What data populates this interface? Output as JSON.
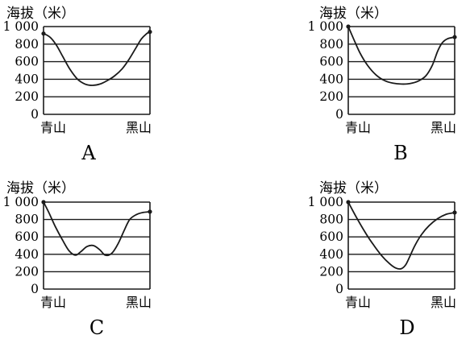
{
  "chart_data": [
    {
      "type": "line",
      "label": "A",
      "ylabel": "海拔（米）",
      "ylim": [
        0,
        1000
      ],
      "yticks": [
        "0",
        "200",
        "400",
        "600",
        "800",
        "1 000"
      ],
      "x_endpoints": [
        "青山",
        "黑山"
      ],
      "profile": [
        [
          0,
          920
        ],
        [
          0.06,
          880
        ],
        [
          0.12,
          790
        ],
        [
          0.18,
          660
        ],
        [
          0.25,
          510
        ],
        [
          0.32,
          400
        ],
        [
          0.39,
          345
        ],
        [
          0.46,
          330
        ],
        [
          0.53,
          345
        ],
        [
          0.6,
          385
        ],
        [
          0.67,
          440
        ],
        [
          0.74,
          520
        ],
        [
          0.8,
          620
        ],
        [
          0.86,
          740
        ],
        [
          0.92,
          860
        ],
        [
          0.97,
          920
        ],
        [
          1.0,
          940
        ]
      ]
    },
    {
      "type": "line",
      "label": "B",
      "ylabel": "海拔（米）",
      "ylim": [
        0,
        1000
      ],
      "yticks": [
        "0",
        "200",
        "400",
        "600",
        "800",
        "1 000"
      ],
      "x_endpoints": [
        "青山",
        "黑山"
      ],
      "profile": [
        [
          0,
          1000
        ],
        [
          0.05,
          860
        ],
        [
          0.11,
          700
        ],
        [
          0.18,
          560
        ],
        [
          0.26,
          450
        ],
        [
          0.34,
          385
        ],
        [
          0.42,
          355
        ],
        [
          0.5,
          345
        ],
        [
          0.58,
          350
        ],
        [
          0.66,
          380
        ],
        [
          0.73,
          440
        ],
        [
          0.79,
          560
        ],
        [
          0.84,
          720
        ],
        [
          0.88,
          810
        ],
        [
          0.93,
          860
        ],
        [
          1.0,
          880
        ]
      ]
    },
    {
      "type": "line",
      "label": "C",
      "ylabel": "海拔（米）",
      "ylim": [
        0,
        1000
      ],
      "yticks": [
        "0",
        "200",
        "400",
        "600",
        "800",
        "1 000"
      ],
      "x_endpoints": [
        "青山",
        "黑山"
      ],
      "profile": [
        [
          0,
          1000
        ],
        [
          0.05,
          880
        ],
        [
          0.11,
          720
        ],
        [
          0.18,
          560
        ],
        [
          0.24,
          440
        ],
        [
          0.3,
          390
        ],
        [
          0.35,
          430
        ],
        [
          0.41,
          490
        ],
        [
          0.47,
          500
        ],
        [
          0.53,
          450
        ],
        [
          0.58,
          390
        ],
        [
          0.64,
          410
        ],
        [
          0.7,
          520
        ],
        [
          0.76,
          680
        ],
        [
          0.81,
          800
        ],
        [
          0.87,
          855
        ],
        [
          0.93,
          880
        ],
        [
          1.0,
          890
        ]
      ]
    },
    {
      "type": "line",
      "label": "D",
      "ylabel": "海拔（米）",
      "ylim": [
        0,
        1000
      ],
      "yticks": [
        "0",
        "200",
        "400",
        "600",
        "800",
        "1 000"
      ],
      "x_endpoints": [
        "青山",
        "黑山"
      ],
      "profile": [
        [
          0,
          1000
        ],
        [
          0.07,
          840
        ],
        [
          0.15,
          670
        ],
        [
          0.23,
          520
        ],
        [
          0.31,
          390
        ],
        [
          0.39,
          290
        ],
        [
          0.45,
          240
        ],
        [
          0.5,
          235
        ],
        [
          0.54,
          280
        ],
        [
          0.58,
          380
        ],
        [
          0.63,
          510
        ],
        [
          0.69,
          630
        ],
        [
          0.76,
          730
        ],
        [
          0.84,
          810
        ],
        [
          0.92,
          860
        ],
        [
          1.0,
          880
        ]
      ]
    }
  ]
}
